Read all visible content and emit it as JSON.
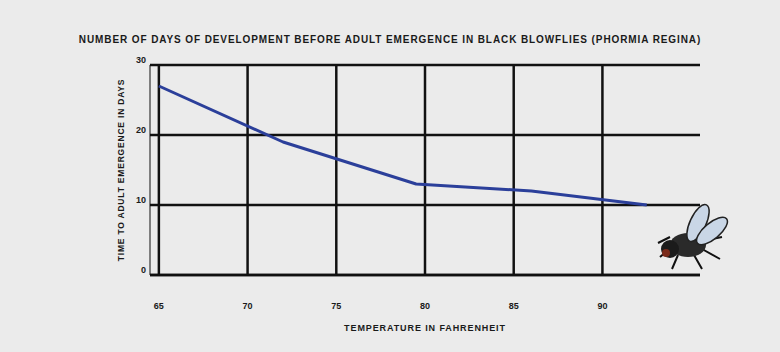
{
  "chart_data": {
    "type": "line",
    "title": "NUMBER OF DAYS OF DEVELOPMENT BEFORE ADULT EMERGENCE IN BLACK BLOWFLIES (PHORMIA REGINA)",
    "x_label": "TEMPERATURE IN FAHRENHEIT",
    "y_label": "TIME TO ADULT EMERGENCE IN DAYS",
    "x": [
      65,
      72,
      79.5,
      86,
      92.5
    ],
    "values": [
      27,
      19,
      13,
      12,
      10
    ],
    "color": "#2b3f9a",
    "xlim": [
      64.5,
      95.5
    ],
    "xticks": [
      65,
      70,
      75,
      80,
      85,
      90
    ],
    "ylim": [
      0,
      30
    ],
    "yticks": [
      0,
      10,
      20,
      30
    ],
    "grid": true
  }
}
